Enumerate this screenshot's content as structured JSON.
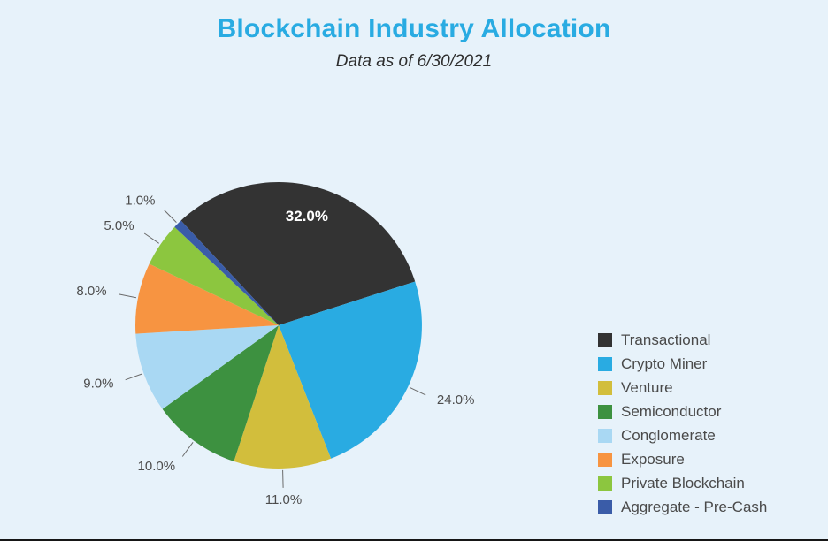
{
  "page": {
    "background_color": "#e7f2fa",
    "bottom_rule_color": "#161616"
  },
  "header": {
    "title": "Blockchain Industry Allocation",
    "subtitle": "Data as of 6/30/2021",
    "title_color": "#29abe2"
  },
  "chart_data": {
    "type": "pie",
    "title": "Blockchain Industry Allocation",
    "subtitle": "Data as of 6/30/2021",
    "legend_position": "right",
    "start_angle_deg": 133,
    "direction": "clockwise",
    "slices": [
      {
        "label": "Transactional",
        "value": 32.0,
        "display": "32.0%",
        "color": "#333333",
        "label_inside": true
      },
      {
        "label": "Crypto Miner",
        "value": 24.0,
        "display": "24.0%",
        "color": "#29abe2",
        "label_inside": false
      },
      {
        "label": "Venture",
        "value": 11.0,
        "display": "11.0%",
        "color": "#d2be3c",
        "label_inside": false
      },
      {
        "label": "Semiconductor",
        "value": 10.0,
        "display": "10.0%",
        "color": "#3d9140",
        "label_inside": false
      },
      {
        "label": "Conglomerate",
        "value": 9.0,
        "display": "9.0%",
        "color": "#a9d8f3",
        "label_inside": false
      },
      {
        "label": "Exposure",
        "value": 8.0,
        "display": "8.0%",
        "color": "#f79441",
        "label_inside": false
      },
      {
        "label": "Private Blockchain",
        "value": 5.0,
        "display": "5.0%",
        "color": "#8cc63f",
        "label_inside": false
      },
      {
        "label": "Aggregate - Pre-Cash",
        "value": 1.0,
        "display": "1.0%",
        "color": "#3a5ca8",
        "label_inside": false
      }
    ]
  }
}
